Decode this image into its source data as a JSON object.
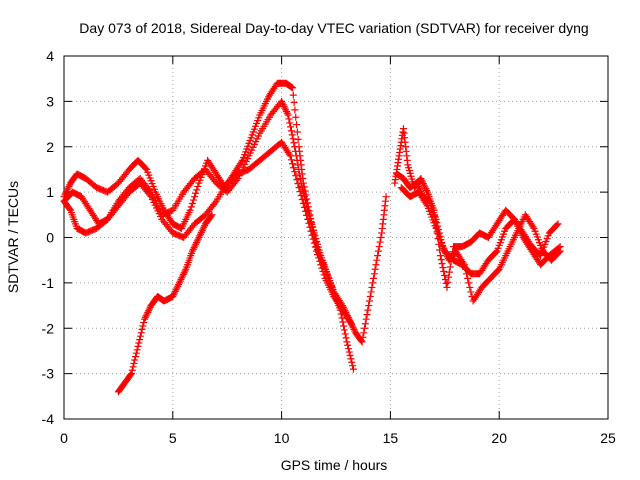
{
  "chart_data": {
    "type": "scatter",
    "title": "Day 073 of 2018, Sidereal Day-to-day VTEC variation (SDTVAR) for receiver dyng",
    "xlabel": "GPS time / hours",
    "ylabel": "SDTVAR / TECUs",
    "xlim": [
      0,
      25
    ],
    "ylim": [
      -4,
      4
    ],
    "xticks": [
      "0",
      "5",
      "10",
      "15",
      "20",
      "25"
    ],
    "yticks": [
      "-4",
      "-3",
      "-2",
      "-1",
      "0",
      "1",
      "2",
      "3",
      "4"
    ],
    "grid": true,
    "marker": "+",
    "color": "#ff0000",
    "series": [
      {
        "x": [
          0.0,
          0.3,
          0.6,
          1.0,
          1.5,
          2.0,
          2.5,
          3.0,
          3.4,
          3.8,
          4.2,
          4.6,
          5.0,
          5.4,
          5.8,
          6.2,
          6.6,
          7.0,
          7.4,
          7.8,
          8.2,
          8.6,
          9.0,
          9.4,
          9.8,
          10.2,
          10.5,
          10.8,
          11.0,
          11.3,
          11.6,
          12.0,
          12.4,
          12.8,
          13.1,
          13.4,
          13.7,
          14.0,
          14.3,
          14.6,
          14.8
        ],
        "y": [
          0.9,
          1.2,
          1.4,
          1.3,
          1.1,
          1.0,
          1.2,
          1.5,
          1.7,
          1.5,
          1.0,
          0.6,
          0.3,
          0.2,
          0.6,
          1.2,
          1.7,
          1.4,
          1.1,
          1.4,
          1.7,
          2.2,
          2.7,
          3.1,
          3.4,
          3.4,
          3.3,
          2.0,
          1.2,
          0.5,
          -0.2,
          -0.7,
          -1.2,
          -1.5,
          -1.8,
          -2.1,
          -2.3,
          -1.5,
          -0.7,
          0.1,
          0.9
        ]
      },
      {
        "x": [
          0.0,
          0.4,
          0.8,
          1.2,
          1.6,
          2.0,
          2.5,
          3.0,
          3.5,
          4.0,
          4.5,
          5.0,
          5.5,
          6.0,
          6.5,
          7.0,
          7.5,
          8.0,
          8.5,
          9.0,
          9.5,
          10.0,
          10.3,
          10.6,
          10.9,
          11.2,
          11.5,
          11.8,
          12.1,
          12.4,
          12.7,
          13.0,
          13.3
        ],
        "y": [
          0.8,
          1.0,
          0.9,
          0.6,
          0.3,
          0.4,
          0.8,
          1.1,
          1.3,
          1.0,
          0.5,
          0.6,
          1.0,
          1.3,
          1.5,
          1.2,
          1.0,
          1.3,
          1.8,
          2.3,
          2.7,
          3.0,
          2.7,
          2.0,
          1.2,
          0.6,
          0.1,
          -0.4,
          -0.8,
          -1.2,
          -1.6,
          -2.3,
          -2.9
        ]
      },
      {
        "x": [
          0.0,
          0.3,
          0.6,
          1.0,
          1.5,
          2.0,
          2.5,
          3.0,
          3.5,
          4.0,
          4.5,
          5.0,
          5.5,
          6.0,
          6.5,
          7.0,
          7.5,
          8.0,
          8.5,
          9.0,
          9.5,
          10.0,
          10.4,
          10.8,
          11.2,
          11.6,
          12.0,
          12.4,
          12.8,
          13.2
        ],
        "y": [
          0.8,
          0.6,
          0.2,
          0.1,
          0.2,
          0.4,
          0.7,
          1.0,
          1.2,
          0.9,
          0.4,
          0.1,
          0.0,
          0.3,
          0.5,
          0.8,
          1.2,
          1.4,
          1.5,
          1.7,
          1.9,
          2.1,
          1.8,
          1.1,
          0.4,
          -0.3,
          -0.9,
          -1.3,
          -1.6,
          -1.9
        ]
      },
      {
        "x": [
          2.5,
          2.8,
          3.1,
          3.4,
          3.7,
          4.0,
          4.3,
          4.6,
          5.0,
          5.3,
          5.6,
          5.9,
          6.2,
          6.5,
          6.8
        ],
        "y": [
          -3.4,
          -3.2,
          -3.0,
          -2.4,
          -1.8,
          -1.5,
          -1.3,
          -1.4,
          -1.3,
          -1.0,
          -0.7,
          -0.3,
          0.0,
          0.3,
          0.5
        ]
      },
      {
        "x": [
          15.2,
          15.4,
          15.6,
          15.8,
          16.1,
          16.4,
          16.7,
          17.0,
          17.3,
          17.6,
          17.9,
          18.3,
          18.7,
          19.1,
          19.5,
          19.9,
          20.3,
          20.7,
          21.1,
          21.5,
          21.9,
          22.3,
          22.7
        ],
        "y": [
          1.2,
          1.8,
          2.4,
          1.6,
          1.1,
          1.3,
          1.0,
          0.6,
          -0.4,
          -1.1,
          -0.2,
          -0.2,
          -0.1,
          0.1,
          0.0,
          0.3,
          0.6,
          0.4,
          0.1,
          -0.2,
          -0.4,
          0.1,
          0.3
        ]
      },
      {
        "x": [
          15.3,
          15.6,
          15.9,
          16.2,
          16.5,
          16.8,
          17.1,
          17.4,
          17.7,
          18.0,
          18.4,
          18.8,
          19.2,
          19.6,
          20.0,
          20.4,
          20.8,
          21.2,
          21.6,
          22.0,
          22.4,
          22.8
        ],
        "y": [
          1.4,
          1.3,
          1.1,
          1.2,
          0.9,
          0.8,
          0.4,
          -0.2,
          -0.5,
          -0.3,
          -0.6,
          -1.4,
          -1.1,
          -0.9,
          -0.7,
          -0.3,
          0.1,
          0.5,
          0.2,
          -0.3,
          -0.5,
          -0.3
        ]
      },
      {
        "x": [
          15.5,
          15.9,
          16.3,
          16.7,
          17.1,
          17.5,
          17.9,
          18.3,
          18.7,
          19.1,
          19.5,
          19.9,
          20.3,
          20.7,
          21.1,
          21.5,
          21.9,
          22.3,
          22.8
        ],
        "y": [
          1.1,
          0.9,
          1.0,
          0.7,
          0.2,
          -0.3,
          -0.5,
          -0.6,
          -0.8,
          -0.8,
          -0.5,
          -0.3,
          0.2,
          0.4,
          0.0,
          -0.3,
          -0.6,
          -0.4,
          -0.2
        ]
      }
    ]
  }
}
